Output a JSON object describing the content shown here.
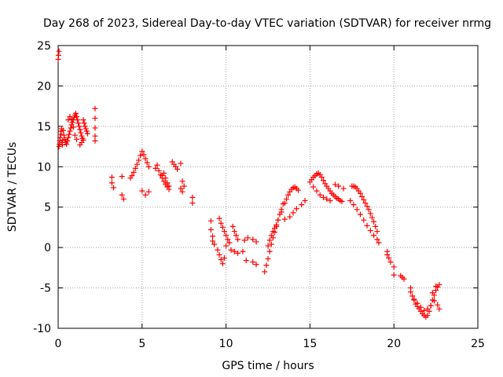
{
  "chart_data": {
    "type": "scatter",
    "title": "Day 268 of 2023, Sidereal Day-to-day VTEC variation (SDTVAR) for receiver nrmg",
    "xlabel": "GPS time / hours",
    "ylabel": "SDTVAR / TECUs",
    "xlim": [
      0,
      25
    ],
    "ylim": [
      -10,
      25
    ],
    "x_ticks": [
      0,
      5,
      10,
      15,
      20,
      25
    ],
    "y_ticks": [
      -10,
      -5,
      0,
      5,
      10,
      15,
      20,
      25
    ],
    "grid": true,
    "marker": "+",
    "series": [
      {
        "name": "SDTVAR",
        "color": "#ff0000",
        "x": [
          0.0,
          0.02,
          0.05,
          0.05,
          0.08,
          0.1,
          0.12,
          0.15,
          0.18,
          0.2,
          0.22,
          0.25,
          0.28,
          0.3,
          0.35,
          0.4,
          0.45,
          0.5,
          0.55,
          0.6,
          0.65,
          0.7,
          0.75,
          0.8,
          0.85,
          0.9,
          0.95,
          1.0,
          1.05,
          1.1,
          1.15,
          1.2,
          1.25,
          1.3,
          1.35,
          1.4,
          1.45,
          1.5,
          1.55,
          1.6,
          1.65,
          1.7,
          1.75,
          1.5,
          1.4,
          1.3,
          0.6,
          0.7,
          0.8,
          0.9,
          1.0,
          1.1,
          2.2,
          2.2,
          2.2,
          2.2,
          2.2,
          3.2,
          3.2,
          3.3,
          3.8,
          3.8,
          3.9,
          4.3,
          4.4,
          4.5,
          4.6,
          4.7,
          4.8,
          4.9,
          5.0,
          5.1,
          5.2,
          5.3,
          5.4,
          5.0,
          5.2,
          5.4,
          5.8,
          5.9,
          6.0,
          6.1,
          6.2,
          6.3,
          6.4,
          6.5,
          6.6,
          6.2,
          6.3,
          6.4,
          6.5,
          6.6,
          6.8,
          6.9,
          7.0,
          7.1,
          7.3,
          7.4,
          7.5,
          7.3,
          7.4,
          8.0,
          8.0,
          9.1,
          9.1,
          9.2,
          9.2,
          9.3,
          9.5,
          9.6,
          9.7,
          9.8,
          9.9,
          10.0,
          9.6,
          9.7,
          9.8,
          9.9,
          10.0,
          10.1,
          10.2,
          10.4,
          10.5,
          10.6,
          10.7,
          10.3,
          10.5,
          10.7,
          11.0,
          11.2,
          11.1,
          11.3,
          11.6,
          11.8,
          11.6,
          11.8,
          12.3,
          12.4,
          12.5,
          12.6,
          12.7,
          12.8,
          12.9,
          13.0,
          13.1,
          13.2,
          13.3,
          13.4,
          12.5,
          12.6,
          12.7,
          12.8,
          12.9,
          13.0,
          13.1,
          13.3,
          13.5,
          13.6,
          13.7,
          13.8,
          13.9,
          14.0,
          14.1,
          14.2,
          14.3,
          13.5,
          13.8,
          14.0,
          14.2,
          14.5,
          14.7,
          15.0,
          15.1,
          15.2,
          15.3,
          15.4,
          15.5,
          15.6,
          15.7,
          15.8,
          15.9,
          16.0,
          16.1,
          16.2,
          16.3,
          16.4,
          16.5,
          16.6,
          16.7,
          16.8,
          16.9,
          15.2,
          15.4,
          15.6,
          15.8,
          16.0,
          16.2,
          16.5,
          16.7,
          17.0,
          17.5,
          17.6,
          17.7,
          17.8,
          17.9,
          18.0,
          18.1,
          18.2,
          18.3,
          18.4,
          18.5,
          18.6,
          18.7,
          18.8,
          18.9,
          19.0,
          17.4,
          17.6,
          17.8,
          18.0,
          18.2,
          18.4,
          18.6,
          18.8,
          19.0,
          19.1,
          19.6,
          19.6,
          19.7,
          19.8,
          20.0,
          20.0,
          20.4,
          20.5,
          20.6,
          21.0,
          21.0,
          21.1,
          21.2,
          21.3,
          21.4,
          21.5,
          21.6,
          21.7,
          21.8,
          21.9,
          22.0,
          22.1,
          22.2,
          22.3,
          22.4,
          22.5,
          22.6,
          22.7,
          21.2,
          21.4,
          21.6,
          21.8,
          22.0,
          22.2,
          22.4,
          22.6,
          22.7,
          22.3,
          22.5
        ],
        "y": [
          23.3,
          23.8,
          24.3,
          12.5,
          12.8,
          13.2,
          13.6,
          14.0,
          14.4,
          14.7,
          13.0,
          12.7,
          13.3,
          14.5,
          13.9,
          13.4,
          13.0,
          12.8,
          13.2,
          13.6,
          14.0,
          14.4,
          14.8,
          15.2,
          15.5,
          15.8,
          16.1,
          16.4,
          16.6,
          16.2,
          15.8,
          15.4,
          15.0,
          14.6,
          14.2,
          13.8,
          13.5,
          15.8,
          15.4,
          15.0,
          14.7,
          14.4,
          14.1,
          13.3,
          13.0,
          12.7,
          15.8,
          16.2,
          15.9,
          14.9,
          13.9,
          13.4,
          17.2,
          16.0,
          14.8,
          13.8,
          13.2,
          8.7,
          8.0,
          7.4,
          8.8,
          6.5,
          6.0,
          8.6,
          8.9,
          9.3,
          9.8,
          10.3,
          10.8,
          11.4,
          11.9,
          11.5,
          11.0,
          10.5,
          10.0,
          7.0,
          6.5,
          6.9,
          9.8,
          10.2,
          9.5,
          9.0,
          8.6,
          8.2,
          7.8,
          7.5,
          7.2,
          8.9,
          9.2,
          8.6,
          8.0,
          7.6,
          10.6,
          10.3,
          10.0,
          9.7,
          10.4,
          8.2,
          7.6,
          7.3,
          6.9,
          6.2,
          5.5,
          3.3,
          2.2,
          1.4,
          0.8,
          0.4,
          -0.3,
          -0.9,
          -1.5,
          -2.0,
          -1.3,
          0.2,
          3.6,
          3.0,
          2.5,
          2.0,
          1.5,
          1.0,
          0.6,
          2.6,
          2.0,
          1.5,
          1.0,
          -0.3,
          -0.5,
          -0.7,
          -0.5,
          -1.6,
          0.9,
          1.2,
          1.0,
          0.7,
          -1.8,
          -2.1,
          -3.0,
          -2.2,
          -1.4,
          -0.5,
          0.4,
          1.2,
          1.9,
          2.6,
          3.4,
          4.1,
          4.7,
          5.4,
          0.2,
          0.9,
          1.5,
          2.0,
          2.4,
          2.8,
          3.4,
          4.4,
          5.5,
          6.0,
          6.5,
          6.9,
          7.2,
          7.4,
          7.5,
          7.3,
          7.1,
          3.5,
          3.8,
          4.3,
          4.8,
          5.3,
          5.8,
          8.1,
          8.4,
          8.7,
          8.9,
          9.1,
          9.2,
          9.0,
          8.7,
          8.3,
          7.9,
          7.6,
          7.3,
          7.0,
          6.7,
          6.5,
          6.3,
          6.1,
          6.0,
          5.8,
          5.7,
          7.5,
          7.0,
          6.5,
          6.2,
          6.0,
          5.8,
          7.8,
          7.6,
          7.3,
          7.6,
          7.6,
          7.5,
          7.3,
          7.0,
          6.7,
          6.3,
          5.9,
          5.5,
          5.1,
          4.7,
          4.2,
          3.7,
          3.2,
          2.6,
          2.0,
          5.8,
          5.3,
          4.7,
          4.1,
          3.4,
          2.7,
          2.1,
          1.5,
          1.0,
          0.6,
          -0.5,
          -0.9,
          -1.3,
          -1.8,
          -2.4,
          -3.4,
          -3.5,
          -3.7,
          -3.9,
          -5.0,
          -5.5,
          -6.0,
          -6.5,
          -7.0,
          -7.3,
          -7.6,
          -7.9,
          -8.2,
          -8.4,
          -8.6,
          -8.4,
          -7.9,
          -7.2,
          -6.5,
          -5.9,
          -5.3,
          -4.9,
          -4.6,
          -6.4,
          -6.9,
          -7.4,
          -7.8,
          -7.6,
          -7.2,
          -6.6,
          -7.1,
          -7.6,
          -5.6,
          -4.8
        ]
      }
    ]
  }
}
